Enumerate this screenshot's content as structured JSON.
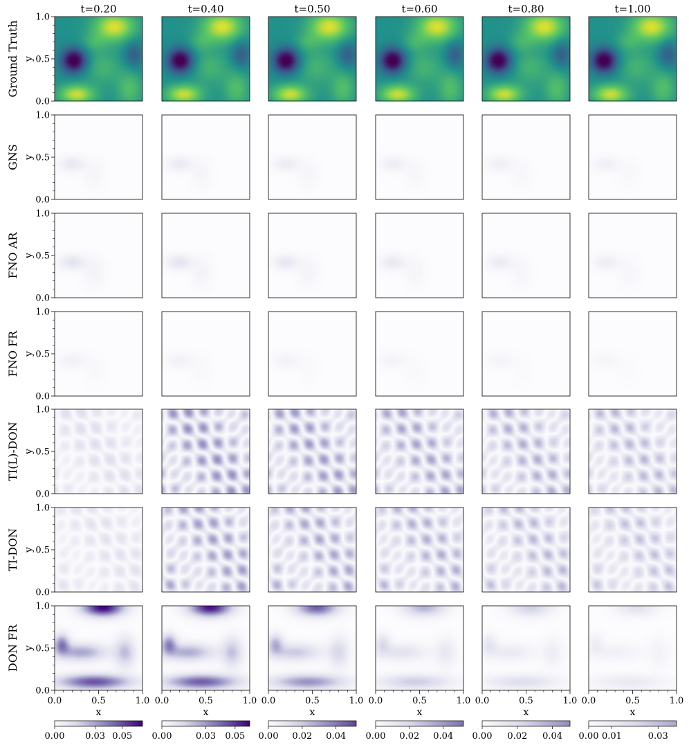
{
  "chart_data": {
    "type": "heatmap",
    "columns": [
      "t=0.20",
      "t=0.40",
      "t=0.50",
      "t=0.60",
      "t=0.80",
      "t=1.00"
    ],
    "rows": [
      "Ground Truth",
      "GNS",
      "FNO AR",
      "FNO FR",
      "TI(L)-DON",
      "TI-DON",
      "DON FR"
    ],
    "xlabel": "x",
    "ylabel": "y",
    "xlim": [
      0.0,
      1.0
    ],
    "ylim": [
      0.0,
      1.0
    ],
    "x_ticks": [
      "0.0",
      "0.5",
      "1.0"
    ],
    "y_ticks": [
      "0.0",
      "0.5",
      "1.0"
    ],
    "colormaps": {
      "ground_truth": "viridis",
      "errors": "purples"
    },
    "colorbars": [
      {
        "column": "t=0.20",
        "range": [
          0.0,
          0.065
        ],
        "ticks": [
          "0.00",
          "0.03",
          "0.05"
        ]
      },
      {
        "column": "t=0.40",
        "range": [
          0.0,
          0.06
        ],
        "ticks": [
          "0.00",
          "0.03",
          "0.05"
        ]
      },
      {
        "column": "t=0.50",
        "range": [
          0.0,
          0.052
        ],
        "ticks": [
          "0.00",
          "0.02",
          "0.04"
        ]
      },
      {
        "column": "t=0.60",
        "range": [
          0.0,
          0.052
        ],
        "ticks": [
          "0.00",
          "0.02",
          "0.04"
        ]
      },
      {
        "column": "t=0.80",
        "range": [
          0.0,
          0.05
        ],
        "ticks": [
          "0.00",
          "0.02",
          "0.04"
        ]
      },
      {
        "column": "t=1.00",
        "range": [
          0.0,
          0.038
        ],
        "ticks": [
          "0.00",
          "0.01",
          "0.03"
        ]
      }
    ],
    "grid": false
  },
  "colors": {
    "viridis_low": "#440154",
    "viridis_mid": "#21918c",
    "viridis_high": "#fde725",
    "purples_low": "#fcfbfd",
    "purples_high": "#3f007d"
  }
}
